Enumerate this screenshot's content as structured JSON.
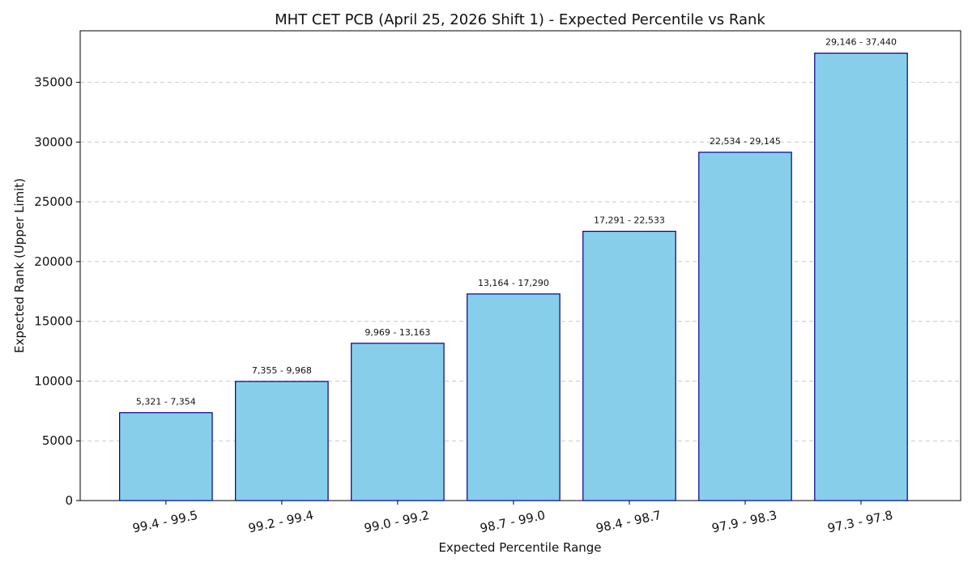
{
  "chart_data": {
    "type": "bar",
    "title": "MHT CET PCB (April 25, 2026 Shift 1) - Expected Percentile vs Rank",
    "xlabel": "Expected Percentile Range",
    "ylabel": "Expected Rank (Upper Limit)",
    "categories": [
      "99.4 - 99.5",
      "99.2 - 99.4",
      "99.0 - 99.2",
      "98.7 - 99.0",
      "98.4 - 98.7",
      "97.9 - 98.3",
      "97.3 - 97.8"
    ],
    "values": [
      7354,
      9968,
      13163,
      17290,
      22533,
      29145,
      37440
    ],
    "bar_labels": [
      "5,321 - 7,354",
      "7,355 - 9,968",
      "9,969 - 13,163",
      "13,164 - 17,290",
      "17,291 - 22,533",
      "22,534 - 29,145",
      "29,146 - 37,440"
    ],
    "y_ticks": [
      0,
      5000,
      10000,
      15000,
      20000,
      25000,
      30000,
      35000
    ],
    "ylim": [
      0,
      39312
    ],
    "grid": "y-dashed",
    "legend": "none",
    "colors": {
      "bar_fill": "#87ceeb",
      "bar_edge": "#00008b",
      "grid": "#c9c9c9",
      "axis": "#000000",
      "text": "#111111"
    }
  }
}
